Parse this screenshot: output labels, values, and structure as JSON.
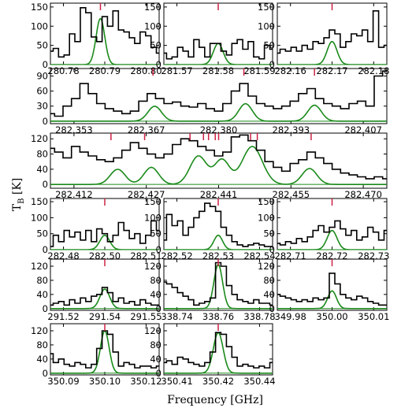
{
  "chart_data": [
    {
      "type": "line",
      "xticks": [
        "280.78",
        "280.79",
        "280.80"
      ],
      "yticks": [
        "0",
        "50",
        "100",
        "150"
      ],
      "ylim": [
        0,
        160
      ],
      "xlim": [
        0,
        1
      ],
      "observed_x": [
        0,
        0.05,
        0.1,
        0.15,
        0.2,
        0.25,
        0.3,
        0.35,
        0.4,
        0.45,
        0.5,
        0.55,
        0.6,
        0.65,
        0.7,
        0.75,
        0.8,
        0.85,
        0.9,
        0.95,
        1.0
      ],
      "observed": [
        35,
        42,
        20,
        25,
        80,
        60,
        148,
        135,
        72,
        60,
        125,
        100,
        140,
        90,
        85,
        70,
        55,
        85,
        75,
        45,
        30
      ],
      "model": {
        "center": 0.46,
        "width": 0.04,
        "amp": 120
      },
      "line_markers": [
        0.46
      ],
      "colors": {
        "observed": "#000000",
        "model": "#1a8a1a",
        "marker": "#cc2244"
      }
    },
    {
      "type": "line",
      "xticks": [
        "281.57",
        "281.58",
        "281.59"
      ],
      "yticks": [
        "0",
        "50",
        "100",
        "150"
      ],
      "ylim": [
        0,
        160
      ],
      "xlim": [
        0,
        1
      ],
      "observed_x": [
        0,
        0.05,
        0.1,
        0.15,
        0.2,
        0.25,
        0.3,
        0.35,
        0.4,
        0.45,
        0.5,
        0.55,
        0.6,
        0.65,
        0.7,
        0.75,
        0.8,
        0.85,
        0.9,
        0.95,
        1.0
      ],
      "observed": [
        30,
        15,
        20,
        45,
        35,
        20,
        65,
        45,
        20,
        55,
        55,
        35,
        25,
        55,
        65,
        40,
        60,
        20,
        15,
        50,
        40
      ],
      "model": {
        "center": 0.5,
        "width": 0.045,
        "amp": 55
      },
      "line_markers": [
        0.5
      ],
      "colors": {
        "observed": "#000000",
        "model": "#1a8a1a",
        "marker": "#cc2244"
      }
    },
    {
      "type": "line",
      "xticks": [
        "282.16",
        "282.17",
        "282.18"
      ],
      "yticks": [
        "0",
        "50",
        "100",
        "150"
      ],
      "ylim": [
        0,
        160
      ],
      "xlim": [
        0,
        1
      ],
      "observed_x": [
        0,
        0.05,
        0.1,
        0.15,
        0.2,
        0.25,
        0.3,
        0.35,
        0.4,
        0.45,
        0.5,
        0.55,
        0.6,
        0.65,
        0.7,
        0.75,
        0.8,
        0.85,
        0.9,
        0.95,
        1.0
      ],
      "observed": [
        30,
        40,
        35,
        45,
        35,
        50,
        40,
        60,
        55,
        70,
        90,
        80,
        45,
        60,
        80,
        75,
        90,
        60,
        140,
        45,
        50
      ],
      "model": {
        "center": 0.5,
        "width": 0.045,
        "amp": 60
      },
      "line_markers": [
        0.5
      ],
      "colors": {
        "observed": "#000000",
        "model": "#1a8a1a",
        "marker": "#cc2244"
      }
    },
    {
      "type": "line",
      "xticks": [
        "282.353",
        "282.367",
        "282.380",
        "282.393",
        "282.407"
      ],
      "yticks": [
        "0",
        "30",
        "60",
        "90"
      ],
      "ylim": [
        -5,
        105
      ],
      "xlim": [
        0,
        1
      ],
      "observed_x": [
        0,
        0.025,
        0.05,
        0.075,
        0.1,
        0.125,
        0.15,
        0.175,
        0.2,
        0.225,
        0.25,
        0.275,
        0.3,
        0.325,
        0.35,
        0.375,
        0.4,
        0.425,
        0.45,
        0.475,
        0.5,
        0.525,
        0.55,
        0.575,
        0.6,
        0.625,
        0.65,
        0.675,
        0.7,
        0.725,
        0.75,
        0.775,
        0.8,
        0.825,
        0.85,
        0.875,
        0.9,
        0.925,
        0.95,
        0.975,
        1.0
      ],
      "observed": [
        15,
        10,
        30,
        45,
        75,
        55,
        35,
        25,
        20,
        15,
        20,
        40,
        55,
        45,
        35,
        38,
        30,
        28,
        35,
        25,
        20,
        35,
        60,
        75,
        50,
        35,
        30,
        25,
        30,
        40,
        55,
        65,
        45,
        35,
        30,
        25,
        35,
        40,
        30,
        90,
        100
      ],
      "model": {
        "peaks": [
          {
            "center": 0.31,
            "width": 0.02,
            "amp": 30
          },
          {
            "center": 0.58,
            "width": 0.02,
            "amp": 35
          },
          {
            "center": 0.785,
            "width": 0.02,
            "amp": 32
          }
        ]
      },
      "line_markers": [
        0.305,
        0.575,
        0.785
      ],
      "colors": {
        "observed": "#000000",
        "model": "#1a8a1a",
        "marker": "#cc2244"
      }
    },
    {
      "type": "line",
      "xticks": [
        "282.412",
        "282.427",
        "282.441",
        "282.455",
        "282.470"
      ],
      "yticks": [
        "0",
        "40",
        "80",
        "120"
      ],
      "ylim": [
        -10,
        135
      ],
      "xlim": [
        0,
        1
      ],
      "observed_x": [
        0,
        0.025,
        0.05,
        0.075,
        0.1,
        0.125,
        0.15,
        0.175,
        0.2,
        0.225,
        0.25,
        0.275,
        0.3,
        0.325,
        0.35,
        0.375,
        0.4,
        0.425,
        0.45,
        0.475,
        0.5,
        0.525,
        0.55,
        0.575,
        0.6,
        0.625,
        0.65,
        0.675,
        0.7,
        0.725,
        0.75,
        0.775,
        0.8,
        0.825,
        0.85,
        0.875,
        0.9,
        0.925,
        0.95,
        0.975,
        1.0
      ],
      "observed": [
        95,
        85,
        70,
        100,
        85,
        75,
        65,
        60,
        70,
        90,
        110,
        95,
        80,
        70,
        80,
        105,
        120,
        115,
        100,
        90,
        75,
        85,
        125,
        130,
        115,
        90,
        60,
        45,
        35,
        55,
        65,
        85,
        70,
        55,
        40,
        30,
        25,
        20,
        15,
        20,
        15
      ],
      "model": {
        "peaks": [
          {
            "center": 0.2,
            "width": 0.022,
            "amp": 40
          },
          {
            "center": 0.3,
            "width": 0.022,
            "amp": 45
          },
          {
            "center": 0.44,
            "width": 0.025,
            "amp": 75
          },
          {
            "center": 0.51,
            "width": 0.022,
            "amp": 65
          },
          {
            "center": 0.6,
            "width": 0.03,
            "amp": 100
          },
          {
            "center": 0.77,
            "width": 0.022,
            "amp": 42
          }
        ]
      },
      "line_markers": [
        0.18,
        0.28,
        0.415,
        0.455,
        0.47,
        0.49,
        0.5,
        0.595,
        0.615,
        0.775
      ],
      "colors": {
        "observed": "#000000",
        "model": "#1a8a1a",
        "marker": "#cc2244"
      }
    },
    {
      "type": "line",
      "xticks": [
        "282.48",
        "282.50",
        "282.51"
      ],
      "yticks": [
        "0",
        "50",
        "100",
        "150"
      ],
      "ylim": [
        0,
        160
      ],
      "xlim": [
        0,
        1
      ],
      "observed_x": [
        0,
        0.05,
        0.1,
        0.15,
        0.2,
        0.25,
        0.3,
        0.35,
        0.4,
        0.45,
        0.5,
        0.55,
        0.6,
        0.65,
        0.7,
        0.75,
        0.8,
        0.85,
        0.9,
        0.95,
        1.0
      ],
      "observed": [
        10,
        45,
        25,
        60,
        40,
        55,
        30,
        60,
        25,
        65,
        50,
        25,
        45,
        85,
        60,
        35,
        50,
        20,
        45,
        90,
        60
      ],
      "model": {
        "center": 0.5,
        "width": 0.045,
        "amp": 45
      },
      "line_markers": [
        0.5
      ],
      "colors": {
        "observed": "#000000",
        "model": "#1a8a1a",
        "marker": "#cc2244"
      }
    },
    {
      "type": "line",
      "xticks": [
        "282.52",
        "282.53",
        "282.54"
      ],
      "yticks": [
        "0",
        "50",
        "100",
        "150"
      ],
      "ylim": [
        0,
        160
      ],
      "xlim": [
        0,
        1
      ],
      "observed_x": [
        0,
        0.05,
        0.1,
        0.15,
        0.2,
        0.25,
        0.3,
        0.35,
        0.4,
        0.45,
        0.5,
        0.55,
        0.6,
        0.65,
        0.7,
        0.75,
        0.8,
        0.85,
        0.9,
        0.95,
        1.0
      ],
      "observed": [
        30,
        110,
        75,
        90,
        45,
        70,
        100,
        120,
        145,
        135,
        120,
        70,
        45,
        25,
        15,
        10,
        15,
        20,
        15,
        10,
        10
      ],
      "model": {
        "center": 0.5,
        "width": 0.04,
        "amp": 45
      },
      "line_markers": [
        0.5
      ],
      "colors": {
        "observed": "#000000",
        "model": "#1a8a1a",
        "marker": "#cc2244"
      }
    },
    {
      "type": "line",
      "xticks": [
        "282.71",
        "282.72",
        "282.73"
      ],
      "yticks": [
        "0",
        "50",
        "100",
        "150"
      ],
      "ylim": [
        0,
        160
      ],
      "xlim": [
        0,
        1
      ],
      "observed_x": [
        0,
        0.05,
        0.1,
        0.15,
        0.2,
        0.25,
        0.3,
        0.35,
        0.4,
        0.45,
        0.5,
        0.55,
        0.6,
        0.65,
        0.7,
        0.75,
        0.8,
        0.85,
        0.9,
        0.95,
        1.0
      ],
      "observed": [
        20,
        15,
        25,
        20,
        35,
        25,
        40,
        60,
        75,
        55,
        70,
        90,
        65,
        45,
        60,
        30,
        40,
        70,
        55,
        30,
        60
      ],
      "model": {
        "center": 0.5,
        "width": 0.045,
        "amp": 60
      },
      "line_markers": [
        0.5
      ],
      "colors": {
        "observed": "#000000",
        "model": "#1a8a1a",
        "marker": "#cc2244"
      }
    },
    {
      "type": "line",
      "xticks": [
        "291.52",
        "291.54",
        "291.55"
      ],
      "yticks": [
        "0",
        "40",
        "80",
        "120"
      ],
      "ylim": [
        -5,
        140
      ],
      "xlim": [
        0,
        1
      ],
      "observed_x": [
        0,
        0.05,
        0.1,
        0.15,
        0.2,
        0.25,
        0.3,
        0.35,
        0.4,
        0.45,
        0.5,
        0.55,
        0.6,
        0.65,
        0.7,
        0.75,
        0.8,
        0.85,
        0.9,
        0.95,
        1.0
      ],
      "observed": [
        10,
        15,
        20,
        10,
        25,
        15,
        30,
        20,
        35,
        40,
        60,
        45,
        20,
        30,
        15,
        20,
        10,
        25,
        15,
        10,
        10
      ],
      "model": {
        "center": 0.5,
        "width": 0.045,
        "amp": 55
      },
      "line_markers": [
        0.5
      ],
      "colors": {
        "observed": "#000000",
        "model": "#1a8a1a",
        "marker": "#cc2244"
      }
    },
    {
      "type": "line",
      "xticks": [
        "338.74",
        "338.76",
        "338.78"
      ],
      "yticks": [
        "0",
        "40",
        "80",
        "120"
      ],
      "ylim": [
        -5,
        140
      ],
      "xlim": [
        0,
        1
      ],
      "observed_x": [
        0,
        0.05,
        0.1,
        0.15,
        0.2,
        0.25,
        0.3,
        0.35,
        0.4,
        0.45,
        0.5,
        0.55,
        0.6,
        0.65,
        0.7,
        0.75,
        0.8,
        0.85,
        0.9,
        0.95,
        1.0
      ],
      "observed": [
        75,
        70,
        60,
        45,
        35,
        25,
        10,
        15,
        20,
        30,
        130,
        120,
        65,
        40,
        25,
        20,
        15,
        25,
        15,
        15,
        10
      ],
      "model": {
        "center": 0.5,
        "width": 0.04,
        "amp": 125
      },
      "line_markers": [
        0.5
      ],
      "colors": {
        "observed": "#000000",
        "model": "#1a8a1a",
        "marker": "#cc2244"
      }
    },
    {
      "type": "line",
      "xticks": [
        "349.98",
        "350.00",
        "350.01"
      ],
      "yticks": [
        "0",
        "40",
        "80",
        "120"
      ],
      "ylim": [
        -5,
        140
      ],
      "xlim": [
        0,
        1
      ],
      "observed_x": [
        0,
        0.05,
        0.1,
        0.15,
        0.2,
        0.25,
        0.3,
        0.35,
        0.4,
        0.45,
        0.5,
        0.55,
        0.6,
        0.65,
        0.7,
        0.75,
        0.8,
        0.85,
        0.9,
        0.95,
        1.0
      ],
      "observed": [
        40,
        35,
        30,
        25,
        20,
        25,
        20,
        30,
        25,
        30,
        100,
        70,
        40,
        30,
        25,
        35,
        30,
        20,
        15,
        10,
        10
      ],
      "model": {
        "center": 0.5,
        "width": 0.04,
        "amp": 50
      },
      "line_markers": [
        0.5
      ],
      "colors": {
        "observed": "#000000",
        "model": "#1a8a1a",
        "marker": "#cc2244"
      }
    },
    {
      "type": "line",
      "xticks": [
        "350.09",
        "350.10",
        "350.12"
      ],
      "yticks": [
        "0",
        "40",
        "80",
        "120"
      ],
      "ylim": [
        -5,
        140
      ],
      "xlim": [
        0,
        1
      ],
      "observed_x": [
        0,
        0.05,
        0.1,
        0.15,
        0.2,
        0.25,
        0.3,
        0.35,
        0.4,
        0.45,
        0.5,
        0.55,
        0.6,
        0.65,
        0.7,
        0.75,
        0.8,
        0.85,
        0.9,
        0.95,
        1.0
      ],
      "observed": [
        55,
        30,
        40,
        25,
        20,
        30,
        25,
        15,
        25,
        70,
        120,
        110,
        60,
        20,
        30,
        25,
        15,
        20,
        20,
        15,
        20
      ],
      "model": {
        "center": 0.5,
        "width": 0.04,
        "amp": 120
      },
      "line_markers": [
        0.5
      ],
      "colors": {
        "observed": "#000000",
        "model": "#1a8a1a",
        "marker": "#cc2244"
      }
    },
    {
      "type": "line",
      "xticks": [
        "350.41",
        "350.42",
        "350.44"
      ],
      "yticks": [
        "0",
        "40",
        "80",
        "120"
      ],
      "ylim": [
        -5,
        140
      ],
      "xlim": [
        0,
        1
      ],
      "observed_x": [
        0,
        0.05,
        0.1,
        0.15,
        0.2,
        0.25,
        0.3,
        0.35,
        0.4,
        0.45,
        0.5,
        0.55,
        0.6,
        0.65,
        0.7,
        0.75,
        0.8,
        0.85,
        0.9,
        0.95,
        1.0
      ],
      "observed": [
        30,
        35,
        25,
        45,
        40,
        30,
        25,
        20,
        30,
        60,
        115,
        110,
        75,
        45,
        20,
        25,
        20,
        15,
        20,
        15,
        30
      ],
      "model": {
        "center": 0.5,
        "width": 0.045,
        "amp": 115
      },
      "line_markers": [
        0.5
      ],
      "colors": {
        "observed": "#000000",
        "model": "#1a8a1a",
        "marker": "#cc2244"
      }
    }
  ],
  "axis_titles": {
    "y": "T",
    "y_sub": "B",
    "y_unit": " [K]",
    "x": "Frequency [GHz]"
  }
}
